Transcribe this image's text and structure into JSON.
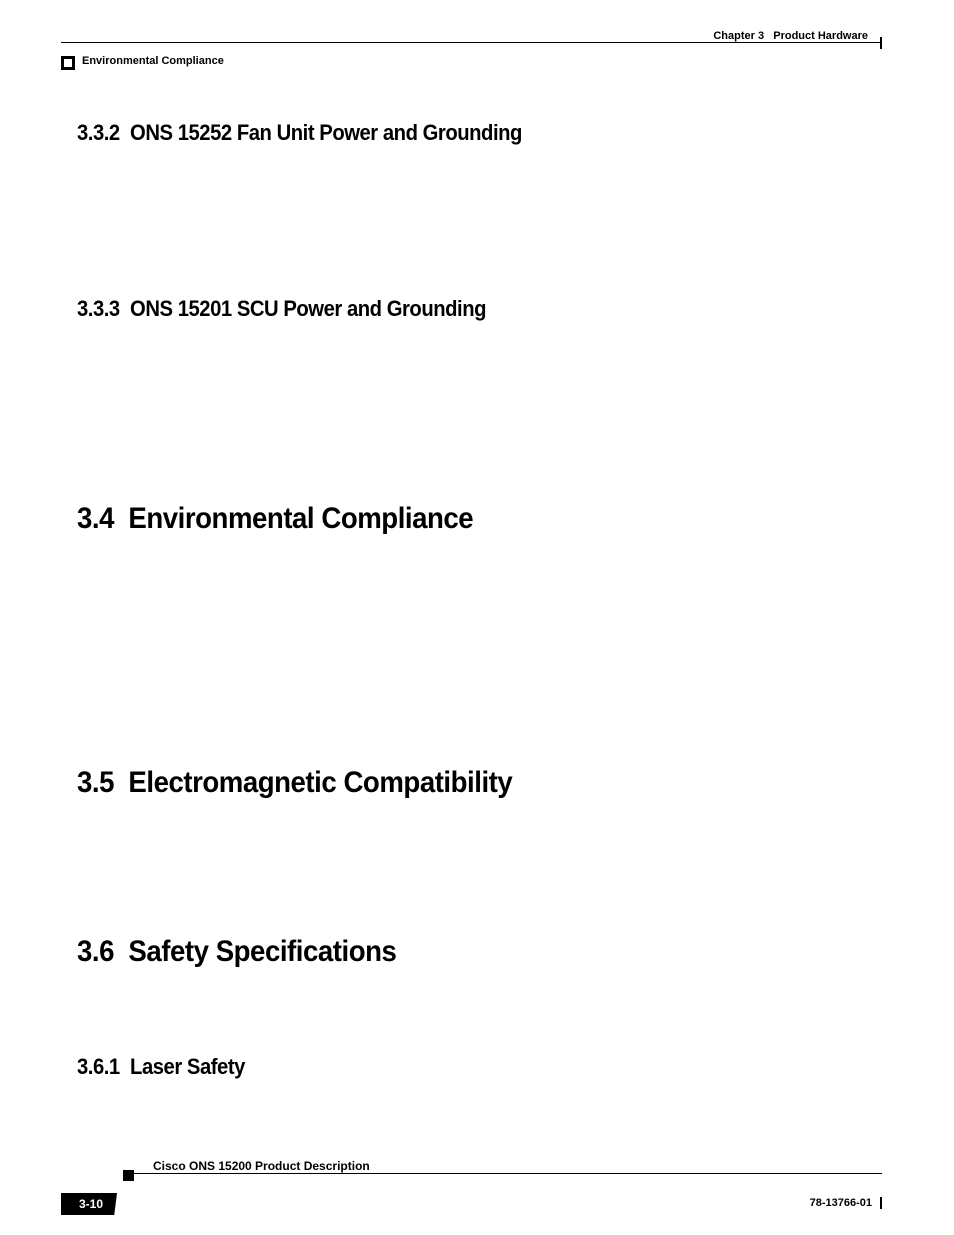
{
  "header": {
    "chapter_label": "Chapter 3",
    "chapter_title": "Product Hardware",
    "running_head": "Environmental Compliance"
  },
  "sections": {
    "s332": {
      "number": "3.3.2",
      "title": "ONS 15252 Fan Unit Power and Grounding"
    },
    "s333": {
      "number": "3.3.3",
      "title": "ONS 15201 SCU Power and Grounding"
    },
    "s34": {
      "number": "3.4",
      "title": "Environmental Compliance"
    },
    "s35": {
      "number": "3.5",
      "title": "Electromagnetic Compatibility"
    },
    "s36": {
      "number": "3.6",
      "title": "Safety Specifications"
    },
    "s361": {
      "number": "3.6.1",
      "title": "Laser Safety"
    }
  },
  "footer": {
    "book_title": "Cisco ONS 15200 Product Description",
    "page_number": "3-10",
    "doc_id": "78-13766-01"
  },
  "colors": {
    "text": "#000000",
    "background": "#ffffff",
    "rule": "#000000",
    "badge_bg": "#000000",
    "badge_fg": "#ffffff"
  },
  "typography": {
    "heading_family": "Arial Narrow / condensed sans-serif",
    "h1_size_pt": 22,
    "h2_size_pt": 16,
    "header_size_pt": 8,
    "footer_size_pt": 9
  }
}
